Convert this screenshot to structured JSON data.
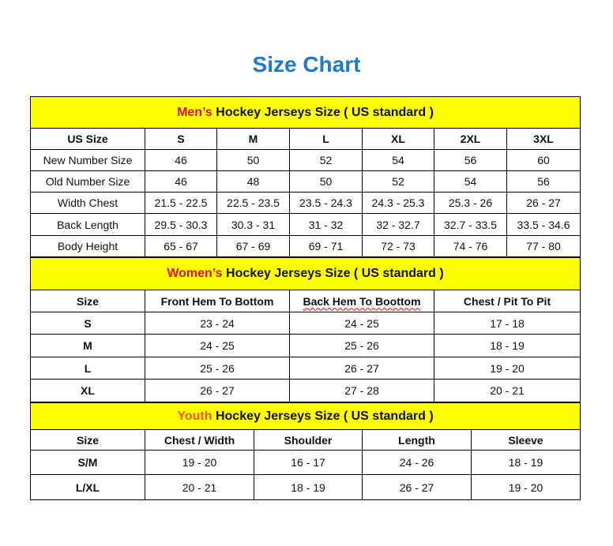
{
  "title": "Size Chart",
  "colors": {
    "title": "#1f78c8",
    "header_bg": "#ffff00",
    "men_accent": "#e0121b",
    "youth_accent": "#f25a00"
  },
  "men": {
    "accent": "Men’s",
    "heading": " Hockey Jerseys Size ( US standard )",
    "columns": [
      "US Size",
      "S",
      "M",
      "L",
      "XL",
      "2XL",
      "3XL"
    ],
    "rows": [
      [
        "New Number Size",
        "46",
        "50",
        "52",
        "54",
        "56",
        "60"
      ],
      [
        "Old Number Size",
        "46",
        "48",
        "50",
        "52",
        "54",
        "56"
      ],
      [
        "Width Chest",
        "21.5 - 22.5",
        "22.5 - 23.5",
        "23.5 - 24.3",
        "24.3 - 25.3",
        "25.3 - 26",
        "26 - 27"
      ],
      [
        "Back Length",
        "29.5 - 30.3",
        "30.3 - 31",
        "31 - 32",
        "32 - 32.7",
        "32.7 - 33.5",
        "33.5 - 34.6"
      ],
      [
        "Body Height",
        "65 - 67",
        "67 - 69",
        "69 - 71",
        "72 - 73",
        "74 - 76",
        "77 - 80"
      ]
    ]
  },
  "women": {
    "accent": "Women’s",
    "heading": " Hockey Jerseys Size ( US standard )",
    "columns": [
      "Size",
      "Front Hem To Bottom",
      "Back Hem To Boottom",
      "Chest / Pit To Pit"
    ],
    "rows": [
      [
        "S",
        "23 - 24",
        "24 - 25",
        "17 - 18"
      ],
      [
        "M",
        "24 - 25",
        "25 - 26",
        "18 - 19"
      ],
      [
        "L",
        "25 - 26",
        "26 - 27",
        "19 - 20"
      ],
      [
        "XL",
        "26 - 27",
        "27 - 28",
        "20 - 21"
      ]
    ]
  },
  "youth": {
    "accent": "Youth",
    "heading": " Hockey Jerseys Size ( US standard )",
    "columns": [
      "Size",
      "Chest / Width",
      "Shoulder",
      "Length",
      "Sleeve"
    ],
    "rows": [
      [
        "S/M",
        "19 - 20",
        "16 - 17",
        "24 - 26",
        "18 - 19"
      ],
      [
        "L/XL",
        "20 - 21",
        "18 - 19",
        "26 - 27",
        "19 - 20"
      ]
    ]
  }
}
